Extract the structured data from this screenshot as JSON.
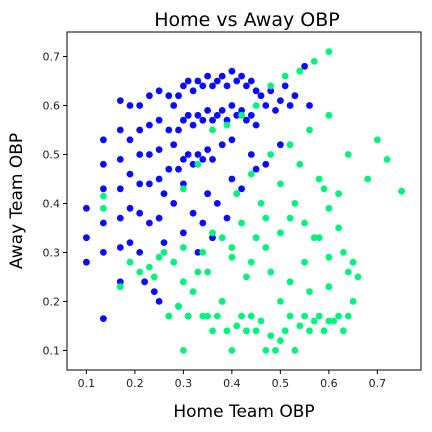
{
  "chart_data": {
    "type": "scatter",
    "title": "Home vs Away OBP",
    "xlabel": "Home Team OBP",
    "ylabel": "Away Team OBP",
    "xlim": [
      0.06,
      0.79
    ],
    "ylim": [
      0.06,
      0.75
    ],
    "xticks": [
      {
        "value": 0.1,
        "label": "0.1"
      },
      {
        "value": 0.2,
        "label": "0.2"
      },
      {
        "value": 0.3,
        "label": "0.3"
      },
      {
        "value": 0.4,
        "label": "0.4"
      },
      {
        "value": 0.5,
        "label": "0.5"
      },
      {
        "value": 0.6,
        "label": "0.6"
      },
      {
        "value": 0.7,
        "label": "0.7"
      }
    ],
    "yticks": [
      {
        "value": 0.1,
        "label": "0.1"
      },
      {
        "value": 0.2,
        "label": "0.2"
      },
      {
        "value": 0.3,
        "label": "0.3"
      },
      {
        "value": 0.4,
        "label": "0.4"
      },
      {
        "value": 0.5,
        "label": "0.5"
      },
      {
        "value": 0.6,
        "label": "0.6"
      },
      {
        "value": 0.7,
        "label": "0.7"
      }
    ],
    "grid": false,
    "legend": "none",
    "series": [
      {
        "color": "#0a0aff",
        "x": [
          0.1,
          0.1,
          0.1,
          0.135,
          0.135,
          0.135,
          0.135,
          0.135,
          0.135,
          0.17,
          0.17,
          0.17,
          0.17,
          0.17,
          0.17,
          0.17,
          0.19,
          0.19,
          0.19,
          0.19,
          0.19,
          0.21,
          0.21,
          0.21,
          0.21,
          0.21,
          0.21,
          0.23,
          0.23,
          0.23,
          0.23,
          0.23,
          0.25,
          0.25,
          0.25,
          0.25,
          0.25,
          0.26,
          0.27,
          0.27,
          0.27,
          0.28,
          0.28,
          0.29,
          0.29,
          0.29,
          0.3,
          0.3,
          0.3,
          0.31,
          0.31,
          0.31,
          0.32,
          0.32,
          0.32,
          0.33,
          0.33,
          0.33,
          0.34,
          0.34,
          0.34,
          0.35,
          0.35,
          0.35,
          0.36,
          0.36,
          0.36,
          0.37,
          0.37,
          0.38,
          0.38,
          0.38,
          0.39,
          0.39,
          0.4,
          0.4,
          0.4,
          0.41,
          0.41,
          0.42,
          0.42,
          0.43,
          0.43,
          0.44,
          0.44,
          0.45,
          0.45,
          0.46,
          0.47,
          0.48,
          0.49,
          0.5,
          0.51,
          0.52,
          0.53,
          0.55,
          0.56,
          0.3,
          0.35,
          0.4,
          0.45,
          0.32,
          0.37,
          0.42,
          0.28,
          0.34,
          0.44,
          0.5,
          0.26,
          0.3,
          0.36,
          0.22,
          0.24,
          0.33,
          0.47,
          0.31,
          0.29,
          0.39,
          0.25
        ],
        "y": [
          0.39,
          0.33,
          0.28,
          0.53,
          0.48,
          0.43,
          0.36,
          0.3,
          0.165,
          0.61,
          0.55,
          0.49,
          0.43,
          0.37,
          0.31,
          0.24,
          0.6,
          0.53,
          0.46,
          0.39,
          0.32,
          0.6,
          0.55,
          0.5,
          0.44,
          0.38,
          0.3,
          0.62,
          0.56,
          0.5,
          0.44,
          0.36,
          0.63,
          0.57,
          0.51,
          0.45,
          0.37,
          0.32,
          0.62,
          0.55,
          0.47,
          0.6,
          0.52,
          0.62,
          0.55,
          0.47,
          0.64,
          0.57,
          0.49,
          0.65,
          0.58,
          0.5,
          0.63,
          0.56,
          0.48,
          0.65,
          0.58,
          0.5,
          0.64,
          0.57,
          0.49,
          0.66,
          0.59,
          0.51,
          0.64,
          0.57,
          0.49,
          0.65,
          0.58,
          0.66,
          0.59,
          0.52,
          0.64,
          0.57,
          0.67,
          0.6,
          0.53,
          0.65,
          0.58,
          0.66,
          0.59,
          0.64,
          0.57,
          0.65,
          0.58,
          0.63,
          0.56,
          0.62,
          0.6,
          0.63,
          0.59,
          0.61,
          0.64,
          0.6,
          0.62,
          0.68,
          0.6,
          0.44,
          0.42,
          0.45,
          0.47,
          0.38,
          0.4,
          0.43,
          0.4,
          0.36,
          0.5,
          0.52,
          0.42,
          0.34,
          0.33,
          0.24,
          0.22,
          0.3,
          0.48,
          0.17,
          0.19,
          0.37,
          0.2
        ]
      },
      {
        "color": "#00f57a",
        "x": [
          0.135,
          0.135,
          0.17,
          0.19,
          0.21,
          0.23,
          0.24,
          0.25,
          0.26,
          0.27,
          0.28,
          0.29,
          0.3,
          0.31,
          0.32,
          0.33,
          0.34,
          0.35,
          0.36,
          0.37,
          0.38,
          0.39,
          0.4,
          0.41,
          0.42,
          0.43,
          0.44,
          0.45,
          0.46,
          0.47,
          0.48,
          0.49,
          0.5,
          0.51,
          0.52,
          0.53,
          0.54,
          0.55,
          0.56,
          0.57,
          0.58,
          0.59,
          0.6,
          0.61,
          0.62,
          0.63,
          0.64,
          0.65,
          0.66,
          0.3,
          0.35,
          0.4,
          0.45,
          0.5,
          0.55,
          0.6,
          0.62,
          0.58,
          0.54,
          0.5,
          0.46,
          0.42,
          0.38,
          0.34,
          0.44,
          0.48,
          0.52,
          0.56,
          0.6,
          0.64,
          0.36,
          0.4,
          0.44,
          0.48,
          0.52,
          0.56,
          0.6,
          0.63,
          0.65,
          0.68,
          0.7,
          0.72,
          0.75,
          0.6,
          0.57,
          0.54,
          0.51,
          0.48,
          0.45,
          0.42,
          0.39,
          0.36,
          0.33,
          0.3,
          0.41,
          0.47,
          0.53,
          0.59,
          0.62,
          0.6,
          0.3,
          0.38,
          0.5,
          0.57,
          0.52,
          0.43,
          0.47,
          0.55,
          0.64,
          0.58
        ],
        "y": [
          0.415,
          0.39,
          0.23,
          0.28,
          0.26,
          0.27,
          0.25,
          0.29,
          0.3,
          0.17,
          0.28,
          0.19,
          0.1,
          0.17,
          0.22,
          0.26,
          0.17,
          0.17,
          0.14,
          0.17,
          0.2,
          0.14,
          0.1,
          0.15,
          0.17,
          0.14,
          0.17,
          0.14,
          0.16,
          0.1,
          0.13,
          0.1,
          0.12,
          0.14,
          0.17,
          0.1,
          0.15,
          0.17,
          0.14,
          0.16,
          0.17,
          0.14,
          0.16,
          0.16,
          0.17,
          0.14,
          0.17,
          0.2,
          0.25,
          0.31,
          0.26,
          0.29,
          0.33,
          0.34,
          0.36,
          0.39,
          0.42,
          0.45,
          0.48,
          0.44,
          0.4,
          0.36,
          0.33,
          0.3,
          0.46,
          0.5,
          0.52,
          0.55,
          0.58,
          0.5,
          0.34,
          0.31,
          0.28,
          0.26,
          0.24,
          0.22,
          0.23,
          0.3,
          0.28,
          0.45,
          0.53,
          0.49,
          0.425,
          0.71,
          0.69,
          0.67,
          0.66,
          0.64,
          0.6,
          0.58,
          0.56,
          0.55,
          0.48,
          0.43,
          0.42,
          0.37,
          0.4,
          0.43,
          0.35,
          0.29,
          0.24,
          0.2,
          0.2,
          0.33,
          0.37,
          0.25,
          0.31,
          0.28,
          0.26,
          0.33
        ]
      }
    ]
  }
}
